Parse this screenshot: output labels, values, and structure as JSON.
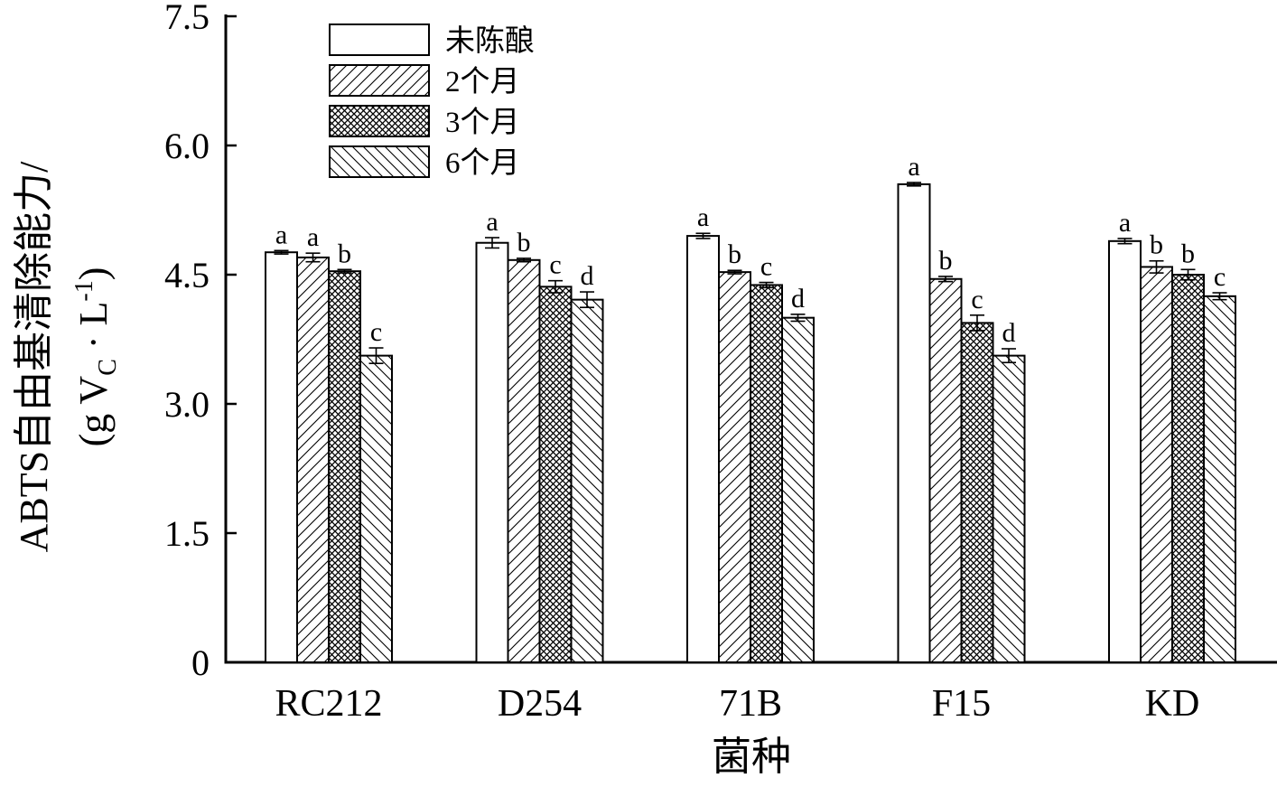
{
  "chart_data": {
    "type": "bar",
    "xlabel": "菌种",
    "ylabel_line1": "ABTS自由基清除能力/",
    "ylabel_line2": "(g V",
    "ylabel_sub": "C",
    "ylabel_line2_tail": " · L",
    "ylabel_sup": "-1",
    "ylabel_close": ")",
    "ylim": [
      0,
      7.5
    ],
    "yticks": [
      "0",
      "1.5",
      "3.0",
      "4.5",
      "6.0",
      "7.5"
    ],
    "ytick_values": [
      0,
      1.5,
      3.0,
      4.5,
      6.0,
      7.5
    ],
    "categories": [
      "RC212",
      "D254",
      "71B",
      "F15",
      "KD"
    ],
    "legend_position": "top-left",
    "series": [
      {
        "name": "未陈酿",
        "pattern": "none",
        "values": [
          4.76,
          4.87,
          4.95,
          5.55,
          4.89
        ],
        "errors": [
          0.02,
          0.06,
          0.03,
          0.02,
          0.03
        ],
        "letters": [
          "a",
          "a",
          "a",
          "a",
          "a"
        ]
      },
      {
        "name": "2个月",
        "pattern": "diag-right",
        "values": [
          4.7,
          4.67,
          4.53,
          4.45,
          4.59
        ],
        "errors": [
          0.05,
          0.02,
          0.02,
          0.03,
          0.07
        ],
        "letters": [
          "a",
          "b",
          "b",
          "b",
          "b"
        ]
      },
      {
        "name": "3个月",
        "pattern": "crosshatch",
        "values": [
          4.54,
          4.36,
          4.38,
          3.94,
          4.5
        ],
        "errors": [
          0.02,
          0.07,
          0.03,
          0.09,
          0.06
        ],
        "letters": [
          "b",
          "c",
          "c",
          "c",
          "b"
        ]
      },
      {
        "name": "6个月",
        "pattern": "diag-left",
        "values": [
          3.56,
          4.21,
          4.0,
          3.56,
          4.25
        ],
        "errors": [
          0.09,
          0.09,
          0.04,
          0.08,
          0.04
        ],
        "letters": [
          "c",
          "d",
          "d",
          "d",
          "c"
        ]
      }
    ]
  }
}
